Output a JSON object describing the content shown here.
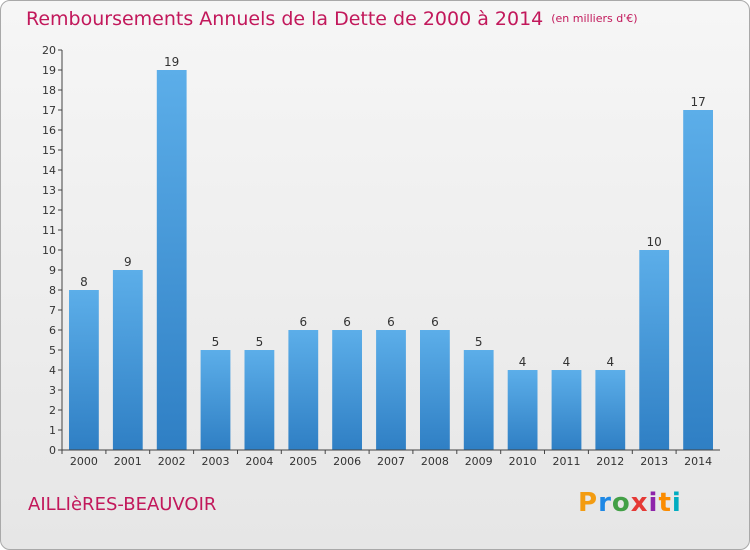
{
  "chart_data": {
    "type": "bar",
    "title": "Remboursements Annuels de la Dette de 2000 à 2014",
    "unit": "(en milliers d'€)",
    "categories": [
      "2000",
      "2001",
      "2002",
      "2003",
      "2004",
      "2005",
      "2006",
      "2007",
      "2008",
      "2009",
      "2010",
      "2011",
      "2012",
      "2013",
      "2014"
    ],
    "values": [
      8,
      9,
      19,
      5,
      5,
      6,
      6,
      6,
      6,
      5,
      4,
      4,
      4,
      10,
      17
    ],
    "ylim": [
      0,
      20
    ],
    "yticks": [
      0,
      1,
      2,
      3,
      4,
      5,
      6,
      7,
      8,
      9,
      10,
      11,
      12,
      13,
      14,
      15,
      16,
      17,
      18,
      19,
      20
    ],
    "grid": false,
    "legend": "none",
    "bar_color": "#4a9ee0"
  },
  "footer": {
    "commune": "AILLIèRES-BEAUVOIR",
    "logo": {
      "letters": [
        "P",
        "r",
        "o",
        "x",
        "i",
        "t",
        "i"
      ],
      "colors": [
        "#f39c12",
        "#1e88e5",
        "#43a047",
        "#e53935",
        "#8e24aa",
        "#fb8c00",
        "#00acc1"
      ]
    }
  }
}
